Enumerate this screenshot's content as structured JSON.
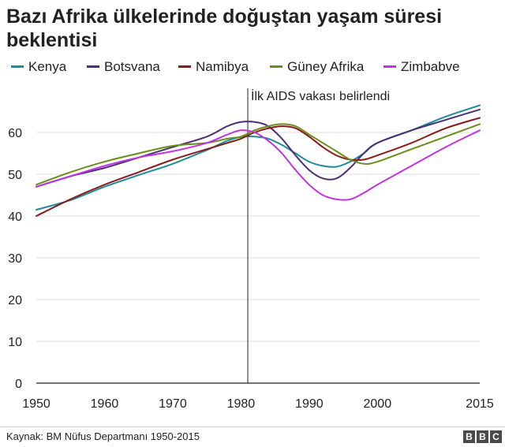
{
  "chart_data": {
    "type": "line",
    "title": "Bazı Afrika ülkelerinde doğuştan yaşam süresi beklentisi",
    "xlabel": "",
    "ylabel": "",
    "x": [
      1950,
      1955,
      1960,
      1965,
      1970,
      1975,
      1978,
      1980,
      1982,
      1984,
      1986,
      1988,
      1990,
      1992,
      1994,
      1996,
      1998,
      2000,
      2005,
      2010,
      2015
    ],
    "xlim": [
      1950,
      2015
    ],
    "ylim": [
      0,
      70
    ],
    "x_ticks": [
      "1950",
      "1960",
      "1970",
      "1980",
      "1990",
      "2000",
      "2015"
    ],
    "x_tick_values": [
      1950,
      1960,
      1970,
      1980,
      1990,
      2000,
      2015
    ],
    "y_ticks": [
      "0",
      "10",
      "20",
      "30",
      "40",
      "50",
      "60"
    ],
    "y_tick_values": [
      0,
      10,
      20,
      30,
      40,
      50,
      60
    ],
    "grid": "horizontal",
    "legend_position": "top",
    "series": [
      {
        "name": "Kenya",
        "color": "#1c8b9a",
        "values": [
          41.5,
          43.8,
          47.0,
          49.8,
          52.5,
          55.8,
          58.0,
          58.9,
          59.0,
          58.5,
          57.0,
          55.0,
          53.0,
          52.0,
          51.8,
          53.0,
          55.0,
          57.5,
          60.5,
          63.8,
          66.5
        ]
      },
      {
        "name": "Botsvana",
        "color": "#4b2f73",
        "values": [
          47.0,
          49.5,
          51.5,
          54.0,
          56.5,
          59.0,
          61.5,
          62.5,
          62.5,
          61.5,
          58.5,
          54.5,
          51.0,
          49.0,
          49.0,
          51.5,
          55.0,
          57.5,
          60.5,
          63.0,
          65.5
        ]
      },
      {
        "name": "Namibya",
        "color": "#8b1a1a",
        "values": [
          40.0,
          44.0,
          47.5,
          50.5,
          53.5,
          56.0,
          57.5,
          58.5,
          60.0,
          61.0,
          61.5,
          61.0,
          59.0,
          56.5,
          54.5,
          53.5,
          53.5,
          54.5,
          57.5,
          61.0,
          63.5
        ]
      },
      {
        "name": "Güney Afrika",
        "color": "#6a8e1a",
        "values": [
          47.5,
          50.5,
          53.0,
          55.0,
          56.8,
          57.5,
          58.5,
          59.0,
          60.5,
          61.5,
          62.0,
          61.5,
          59.5,
          57.5,
          55.5,
          53.5,
          52.5,
          53.0,
          56.0,
          59.0,
          62.0
        ]
      },
      {
        "name": "Zimbabve",
        "color": "#c033e0",
        "values": [
          47.0,
          49.5,
          52.0,
          54.0,
          55.5,
          57.5,
          59.5,
          60.5,
          60.0,
          58.0,
          55.0,
          51.0,
          47.5,
          45.0,
          44.0,
          44.0,
          45.5,
          47.5,
          52.0,
          56.5,
          60.5
        ]
      }
    ],
    "annotations": [
      {
        "text": "İlk AIDS vakası belirlendi",
        "x": 1981
      }
    ]
  },
  "source": "Kaynak: BM Nüfus Departmanı 1950-2015",
  "logo": [
    "B",
    "B",
    "C"
  ],
  "colors": {
    "text": "#222222",
    "grid": "#dddddd",
    "axis": "#222222"
  }
}
